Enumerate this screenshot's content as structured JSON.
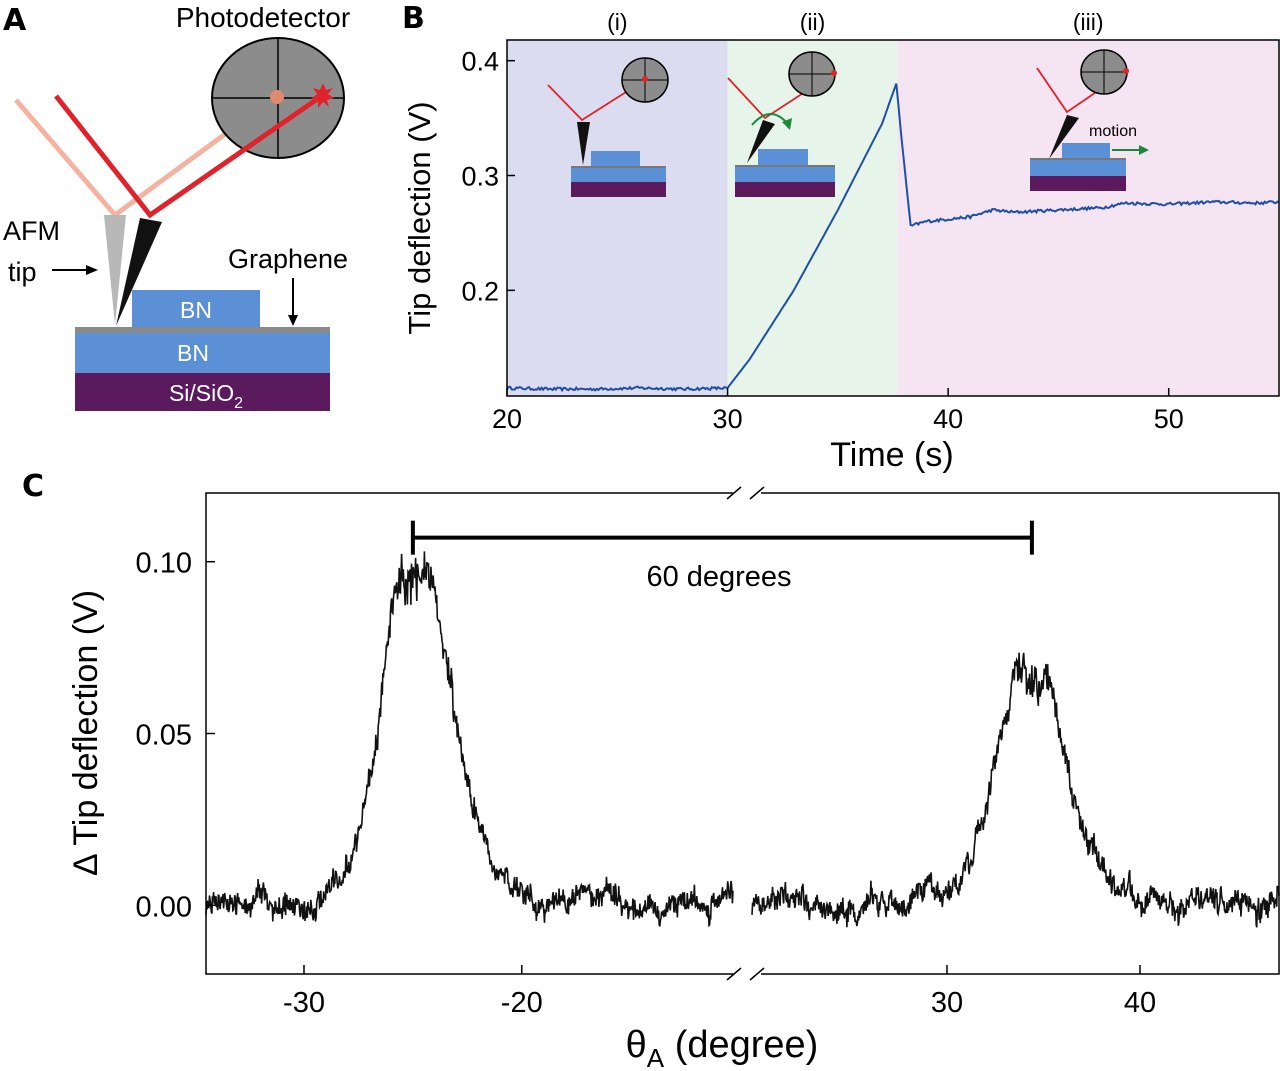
{
  "panel_a": {
    "letter": "A",
    "photodetector_label": "Photodetector",
    "afm_label_line1": "AFM",
    "afm_label_line2": "tip",
    "graphene_label": "Graphene",
    "top_bn_label": "BN",
    "bottom_bn_label": "BN",
    "substrate_label": "Si/SiO",
    "substrate_subscript": "2",
    "colors": {
      "bn": "#5b8fd6",
      "substrate": "#5c1a5e",
      "laser": "#e0222a",
      "laser_faint": "#f3b3a0",
      "detector": "#8c8c8c"
    }
  },
  "panel_b": {
    "letter": "B",
    "phases": [
      {
        "label": "(i)",
        "x_start": 20,
        "x_end": 30,
        "color": "#dcdcf0"
      },
      {
        "label": "(ii)",
        "x_start": 30,
        "x_end": 37.7,
        "color": "#e6f4ea"
      },
      {
        "label": "(iii)",
        "x_start": 37.7,
        "x_end": 55,
        "color": "#f5e4f1"
      }
    ],
    "motion_label": "motion"
  },
  "panel_c": {
    "letter": "C",
    "scale_bar_label": "60 degrees"
  },
  "chart_data": [
    {
      "id": "B",
      "type": "line",
      "title": "",
      "xlabel": "Time (s)",
      "ylabel": "Tip deflection (V)",
      "xlim": [
        20,
        55
      ],
      "ylim": [
        0.108,
        0.418
      ],
      "xticks": [
        20,
        30,
        40,
        50
      ],
      "yticks": [
        0.2,
        0.3,
        0.4
      ],
      "ytick_labels": [
        "0.2",
        "0.3",
        "0.4"
      ],
      "color": "#1f4fa8",
      "series": [
        {
          "name": "Tip deflection",
          "x": [
            20,
            22,
            24,
            26,
            28,
            30,
            31,
            33,
            35,
            37,
            37.65,
            37.9,
            38.3,
            39,
            40,
            41,
            42,
            43,
            45,
            47,
            48,
            50,
            52,
            54,
            55
          ],
          "y": [
            0.115,
            0.114,
            0.114,
            0.115,
            0.114,
            0.115,
            0.14,
            0.2,
            0.27,
            0.345,
            0.38,
            0.33,
            0.256,
            0.26,
            0.262,
            0.264,
            0.27,
            0.268,
            0.27,
            0.272,
            0.276,
            0.275,
            0.277,
            0.276,
            0.277
          ]
        }
      ]
    },
    {
      "id": "C",
      "type": "line",
      "title": "",
      "xlabel": "θ",
      "xlabel_subscript": "A",
      "xlabel_suffix": " (degree)",
      "ylabel": "Δ Tip deflection (V)",
      "ylim": [
        -0.02,
        0.12
      ],
      "yticks": [
        0.0,
        0.05,
        0.1
      ],
      "ytick_labels": [
        "0.00",
        "0.05",
        "0.10"
      ],
      "xticks": [
        -30,
        -20,
        30,
        40
      ],
      "broken_axis": true,
      "segments": [
        {
          "xlim": [
            -34.5,
            -10.3
          ],
          "peak": {
            "center": -25,
            "height": 0.09,
            "width_left": 1.3,
            "width_right": 1.6
          }
        },
        {
          "xlim": [
            19.9,
            47.2
          ],
          "peak": {
            "center": 34.4,
            "height": 0.063,
            "width_left": 1.6,
            "width_right": 1.6
          }
        }
      ],
      "baseline": 0.0,
      "noise_amplitude": 0.004,
      "scale_bar": {
        "x_from": -25,
        "x_to": 34.4,
        "y": 0.107,
        "label": "60 degrees"
      },
      "color": "#111111"
    }
  ]
}
